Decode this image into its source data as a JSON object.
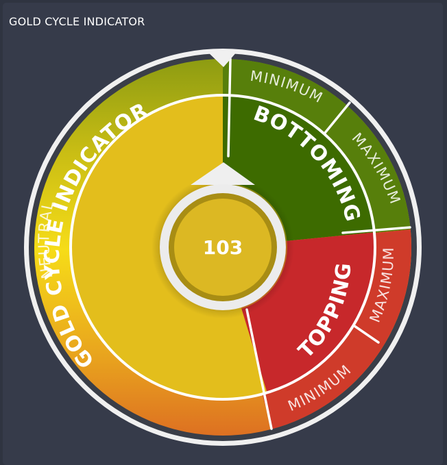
{
  "panel": {
    "title": "GOLD CYCLE INDICATOR"
  },
  "gauge": {
    "value": "103",
    "main_label": "GOLD CYCLE INDICATOR",
    "outer_neutral_label": "NEUTRAL",
    "bottoming": {
      "label": "BOTTOMING",
      "minimum_label": "MINIMUM",
      "maximum_label": "MAXIMUM"
    },
    "topping": {
      "label": "TOPPING",
      "minimum_label": "MINIMUM",
      "maximum_label": "MAXIMUM"
    }
  },
  "colors": {
    "neutral_yellow": "#e3be1c",
    "bottoming_green": "#3d6b00",
    "bottoming_outer_green": "#577f0b",
    "topping_red": "#c7282b",
    "topping_outer_red": "#d2402a",
    "hub_gold": "#dcb823",
    "hub_ring": "#a88d14"
  }
}
